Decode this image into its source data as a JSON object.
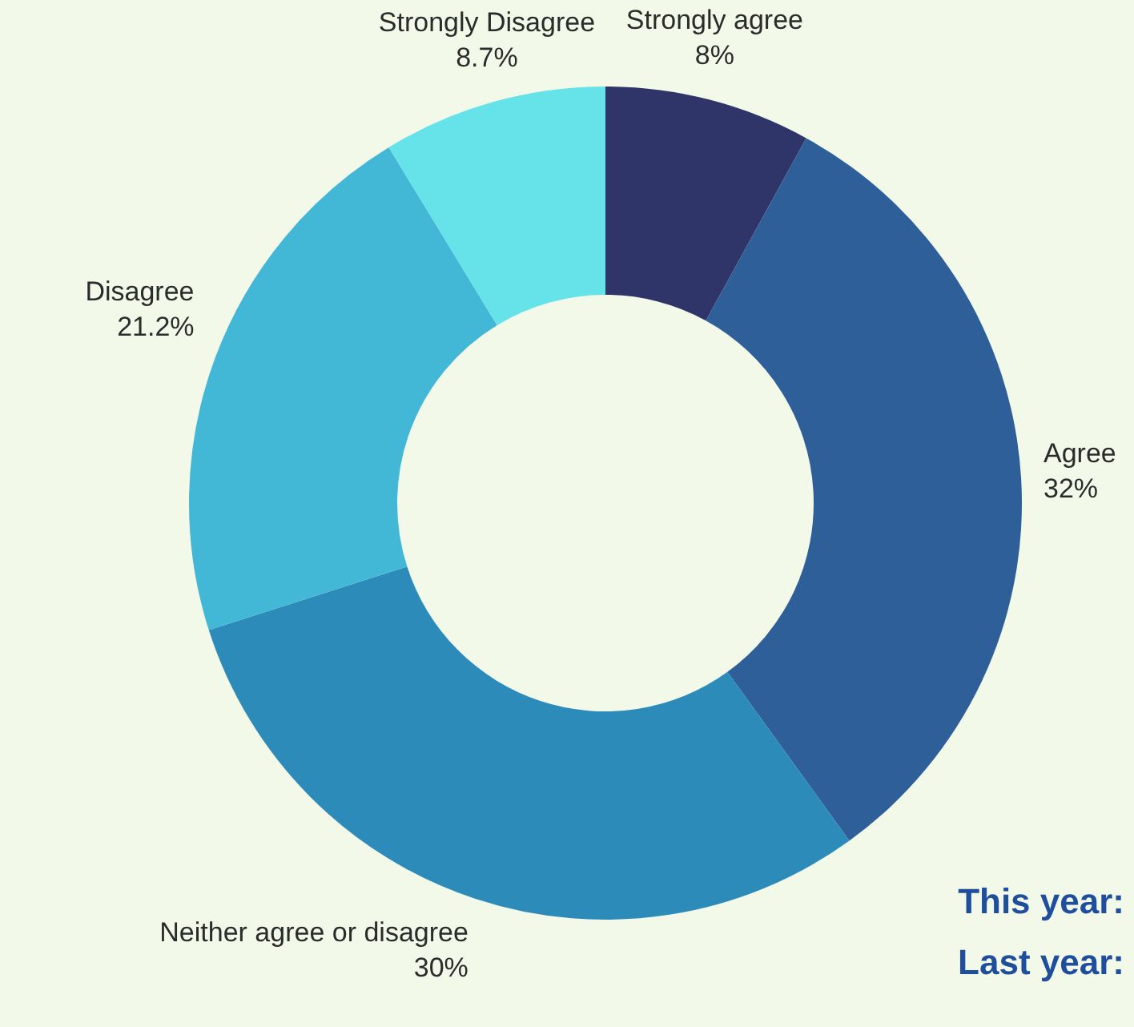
{
  "chart_data": {
    "type": "donut",
    "categories": [
      "Strongly agree",
      "Agree",
      "Neither agree or disagree",
      "Disagree",
      "Strongly Disagree"
    ],
    "values": [
      8,
      32,
      30,
      21.2,
      8.7
    ],
    "value_labels": [
      "8%",
      "32%",
      "30%",
      "21.2%",
      "8.7%"
    ],
    "colors": [
      "#2f3569",
      "#2e5f98",
      "#2d8bba",
      "#43b7d6",
      "#66e3e8"
    ],
    "legend": false,
    "annotations": [
      "This year:",
      "Last year:"
    ]
  }
}
